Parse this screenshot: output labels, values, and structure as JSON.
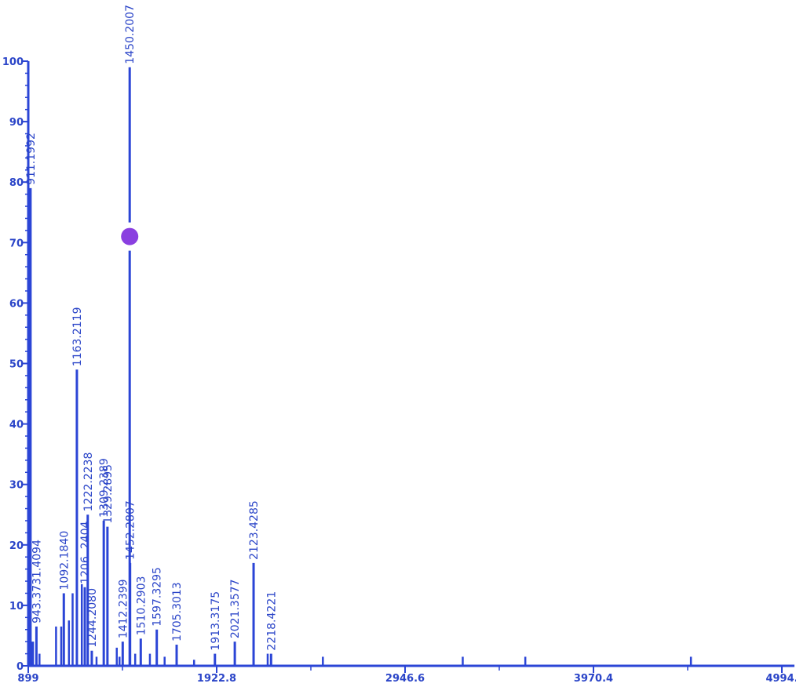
{
  "chart_data": {
    "type": "stick",
    "color": "#2b45d6",
    "xlim": [
      899.0,
      4994.2
    ],
    "xticks": [
      899.0,
      1922.8,
      2946.6,
      3970.4,
      {
        "value": 4994.2,
        "label": "4994."
      }
    ],
    "ylim": [
      0,
      100
    ],
    "yticks": [
      0,
      10,
      20,
      30,
      40,
      50,
      60,
      70,
      80,
      90,
      100
    ],
    "peaks": {
      "x": [
        911.1992,
        943.3731,
        1092.184,
        1163.2119,
        1206.2404,
        1222.2238,
        1244.208,
        1309.2389,
        1329.2895,
        1412.2399,
        1450.2007,
        1452.2807,
        1510.2903,
        1597.3295,
        1705.3013,
        1913.3175,
        2021.3577,
        2123.4285,
        2218.4221
      ],
      "labels": [
        "911.1992",
        "943.3731.4094",
        "1092.1840",
        "1163.2119",
        "1206 .2404",
        "1222.2238",
        "1244.2080",
        "1309.2389",
        "1329.2895",
        "1412.2399",
        "1450.2007",
        "1452.2807",
        "1510.2903",
        "1597.3295",
        "1705.3013",
        "1913.3175",
        "2021.3577",
        "2123.4285",
        "2218.4221"
      ],
      "values": [
        79,
        6.5,
        12,
        49,
        13,
        25,
        2.5,
        24,
        23,
        4,
        99,
        17,
        4.5,
        6,
        3.5,
        2,
        4,
        17,
        2
      ]
    },
    "minor_peaks": {
      "x": [
        903,
        915,
        925,
        960,
        1050,
        1078,
        1120,
        1140,
        1190,
        1270,
        1380,
        1395,
        1480,
        1560,
        1640,
        1800,
        2200,
        2500,
        3260,
        3600,
        4500
      ],
      "values": [
        14,
        4,
        4,
        2,
        6.5,
        6.5,
        7.5,
        12,
        13.5,
        1.5,
        3,
        1.5,
        2,
        2,
        1.5,
        1,
        2,
        1.5,
        1.5,
        1.5,
        1.5
      ]
    },
    "marker": {
      "x": 1450.2007,
      "y": 71,
      "color": "#8a3fe0"
    }
  }
}
